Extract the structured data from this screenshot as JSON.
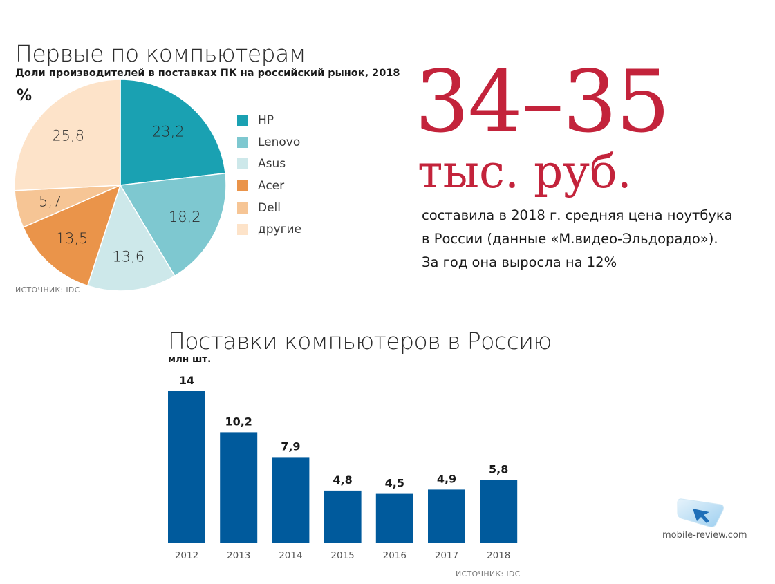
{
  "pie_chart": {
    "title": "Первые по компьютерам",
    "subtitle": "Доли производителей в поставках ПК на российский рынок, 2018",
    "unit": "%",
    "source": "ИСТОЧНИК: IDC"
  },
  "highlight": {
    "number": "34–35",
    "unit": "тыс. руб.",
    "lines": [
      "составила в 2018 г. средняя цена ноутбука",
      "в России (данные «М.видео-Эльдорадо»).",
      "За год она выросла на 12%"
    ]
  },
  "bar_chart": {
    "title": "Поставки компьютеров в Россию",
    "unit": "млн шт.",
    "source": "ИСТОЧНИК: IDC"
  },
  "logo": {
    "icon": "cursor-arrow-icon",
    "text": "mobile-review.com"
  },
  "colors": {
    "accent_red": "#c3233b",
    "bar_blue": "#005a9c"
  },
  "chart_data": [
    {
      "type": "pie",
      "title": "Первые по компьютерам",
      "subtitle": "Доли производителей в поставках ПК на российский рынок, 2018",
      "unit": "%",
      "legend_position": "right",
      "slices": [
        {
          "name": "HP",
          "value": 23.2,
          "label": "23,2",
          "color": "#1aa1b2"
        },
        {
          "name": "Lenovo",
          "value": 18.2,
          "label": "18,2",
          "color": "#7ec8d0"
        },
        {
          "name": "Asus",
          "value": 13.6,
          "label": "13,6",
          "color": "#cde8ea"
        },
        {
          "name": "Acer",
          "value": 13.5,
          "label": "13,5",
          "color": "#ea944a"
        },
        {
          "name": "Dell",
          "value": 5.7,
          "label": "5,7",
          "color": "#f6c595"
        },
        {
          "name": "другие",
          "value": 25.8,
          "label": "25,8",
          "color": "#fde3c9"
        }
      ]
    },
    {
      "type": "bar",
      "title": "Поставки компьютеров в Россию",
      "ylabel": "млн шт.",
      "categories": [
        "2012",
        "2013",
        "2014",
        "2015",
        "2016",
        "2017",
        "2018"
      ],
      "values": [
        14,
        10.2,
        7.9,
        4.8,
        4.5,
        4.9,
        5.8
      ],
      "value_labels": [
        "14",
        "10,2",
        "7,9",
        "4,8",
        "4,5",
        "4,9",
        "5,8"
      ],
      "ylim": [
        0,
        14
      ],
      "color": "#005a9c",
      "grid": false
    }
  ]
}
